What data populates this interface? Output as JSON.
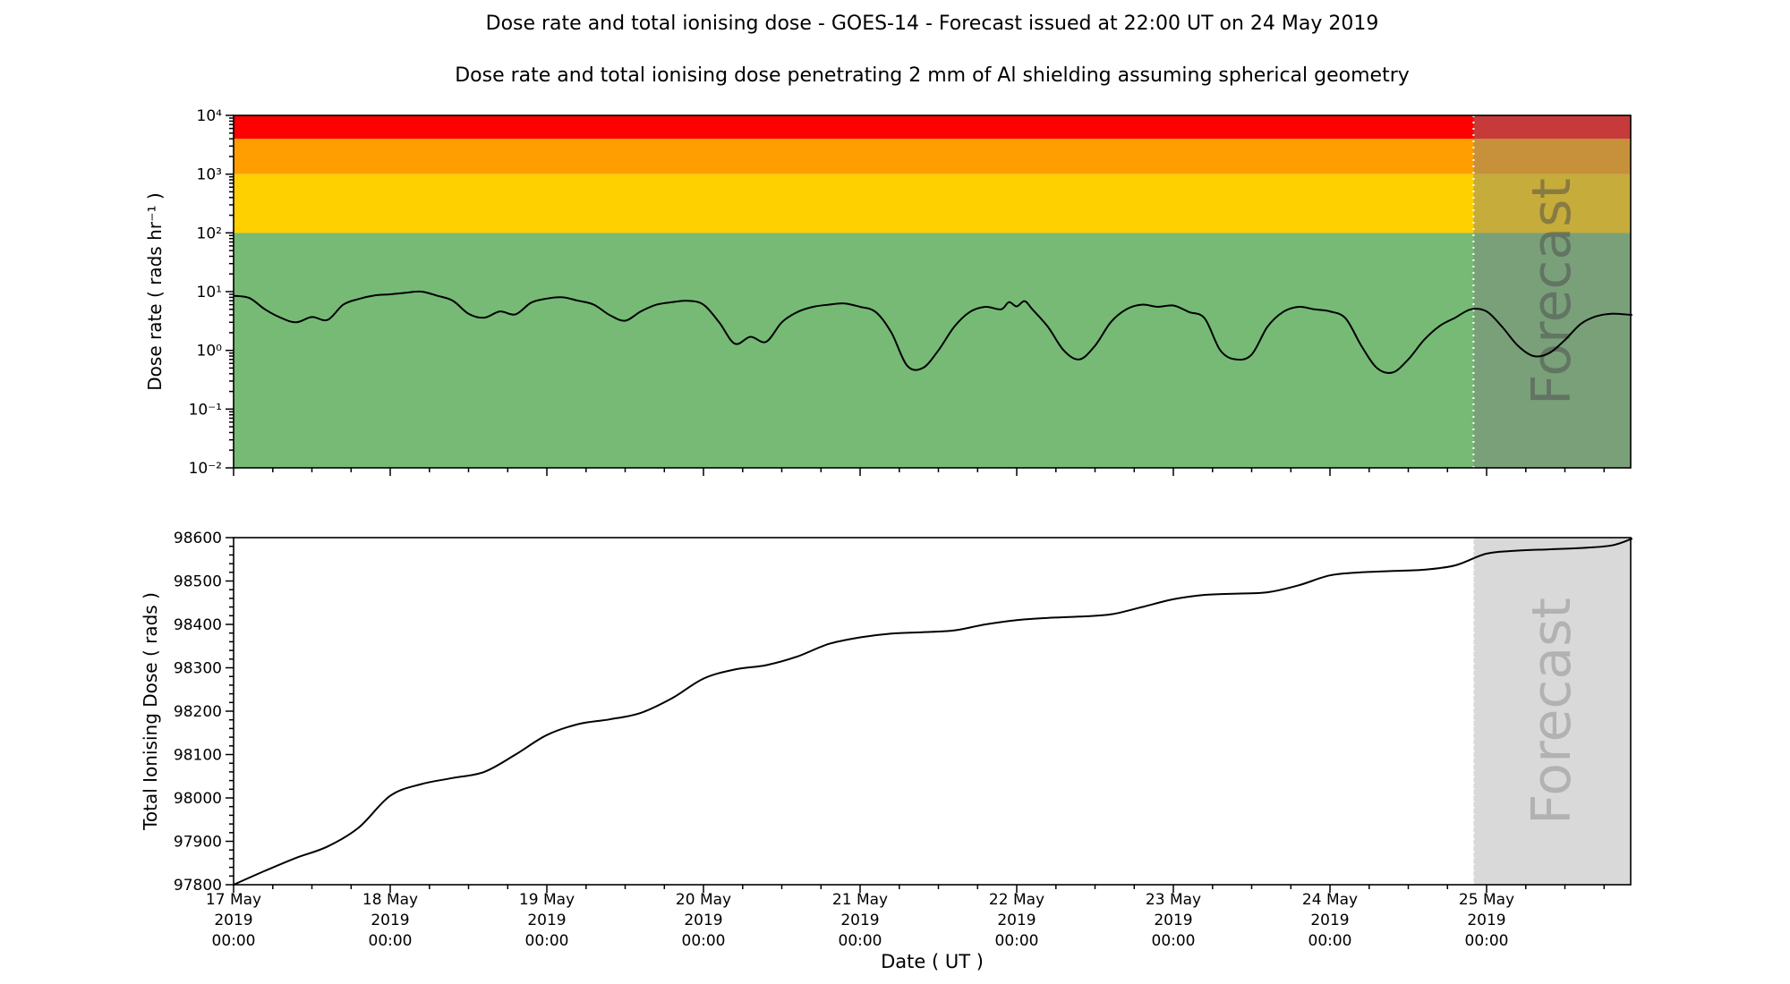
{
  "chart_data": {
    "type": "line",
    "title": "Dose rate and total ionising dose - GOES-14 - Forecast issued at 22:00 UT on 24 May 2019",
    "subtitle": "Dose rate and total ionising dose penetrating 2 mm of Al shielding assuming spherical geometry",
    "x_axis": {
      "label": "Date ( UT )",
      "domain_days": [
        0,
        8.92
      ],
      "start_date": "17 May 2019 00:00",
      "tick_days": [
        0,
        1,
        2,
        3,
        4,
        5,
        6,
        7,
        8
      ],
      "tick_labels": [
        [
          "17 May",
          "2019",
          "00:00"
        ],
        [
          "18 May",
          "2019",
          "00:00"
        ],
        [
          "19 May",
          "2019",
          "00:00"
        ],
        [
          "20 May",
          "2019",
          "00:00"
        ],
        [
          "21 May",
          "2019",
          "00:00"
        ],
        [
          "22 May",
          "2019",
          "00:00"
        ],
        [
          "23 May",
          "2019",
          "00:00"
        ],
        [
          "24 May",
          "2019",
          "00:00"
        ],
        [
          "25 May",
          "2019",
          "00:00"
        ]
      ],
      "minor_tick_interval_days": 0.25,
      "forecast_start_day": 7.9167
    },
    "forecast": {
      "label": "Forecast",
      "overlay_color": "#808080",
      "overlay_opacity": 0.45,
      "bottom_fill": "#d9d9d9",
      "watermark_color_top": "#4a4a4a",
      "watermark_opacity_top": 0.5,
      "watermark_color_bottom": "#b2b2b2",
      "divider_color": "#ffffff"
    },
    "panels": [
      {
        "name": "dose-rate",
        "type": "line",
        "ylabel": "Dose rate ( rads hr⁻¹ )",
        "yscale": "log",
        "ylim": [
          0.01,
          10000
        ],
        "ytick_values": [
          0.01,
          0.1,
          1,
          10,
          100,
          1000,
          10000
        ],
        "ytick_labels": [
          "10⁻²",
          "10⁻¹",
          "10⁰",
          "10¹",
          "10²",
          "10³",
          "10⁴"
        ],
        "bands": [
          {
            "name": "green",
            "from": 0.01,
            "to": 100,
            "color": "#76ba76"
          },
          {
            "name": "yellow",
            "from": 100,
            "to": 1000,
            "color": "#ffd000"
          },
          {
            "name": "orange",
            "from": 1000,
            "to": 4000,
            "color": "#ff9e00"
          },
          {
            "name": "red",
            "from": 4000,
            "to": 10000,
            "color": "#ff0000"
          }
        ],
        "line_color": "#000000",
        "x_days": [
          0.0,
          0.1,
          0.2,
          0.3,
          0.4,
          0.5,
          0.6,
          0.7,
          0.8,
          0.9,
          1.0,
          1.1,
          1.2,
          1.3,
          1.4,
          1.5,
          1.6,
          1.7,
          1.8,
          1.9,
          2.0,
          2.1,
          2.2,
          2.3,
          2.4,
          2.5,
          2.6,
          2.7,
          2.8,
          2.9,
          3.0,
          3.1,
          3.2,
          3.3,
          3.4,
          3.5,
          3.6,
          3.7,
          3.8,
          3.9,
          4.0,
          4.1,
          4.2,
          4.3,
          4.4,
          4.5,
          4.6,
          4.7,
          4.8,
          4.9,
          4.95,
          5.0,
          5.05,
          5.1,
          5.2,
          5.3,
          5.4,
          5.5,
          5.6,
          5.7,
          5.8,
          5.9,
          6.0,
          6.1,
          6.2,
          6.3,
          6.4,
          6.5,
          6.6,
          6.7,
          6.8,
          6.9,
          7.0,
          7.1,
          7.2,
          7.3,
          7.4,
          7.5,
          7.6,
          7.7,
          7.8,
          7.9,
          8.0,
          8.1,
          8.2,
          8.3,
          8.4,
          8.5,
          8.6,
          8.7,
          8.8,
          8.93
        ],
        "values": [
          8.5,
          7.8,
          5.0,
          3.6,
          3.0,
          3.7,
          3.3,
          6.0,
          7.5,
          8.6,
          9.0,
          9.6,
          10.0,
          8.5,
          7.0,
          4.2,
          3.6,
          4.6,
          4.1,
          6.5,
          7.6,
          8.0,
          7.0,
          6.0,
          4.0,
          3.2,
          4.6,
          6.0,
          6.6,
          7.0,
          6.0,
          3.0,
          1.3,
          1.7,
          1.4,
          3.0,
          4.5,
          5.5,
          6.0,
          6.3,
          5.5,
          4.5,
          2.0,
          0.55,
          0.5,
          1.0,
          2.5,
          4.5,
          5.5,
          5.0,
          6.6,
          5.6,
          6.9,
          5.0,
          2.5,
          1.0,
          0.7,
          1.2,
          3.0,
          5.0,
          6.0,
          5.5,
          5.8,
          4.5,
          3.5,
          1.0,
          0.7,
          0.85,
          2.5,
          4.5,
          5.5,
          5.0,
          4.6,
          3.5,
          1.2,
          0.5,
          0.42,
          0.7,
          1.5,
          2.6,
          3.6,
          5.0,
          4.6,
          2.5,
          1.2,
          0.8,
          0.9,
          1.5,
          2.8,
          3.8,
          4.2,
          4.0
        ]
      },
      {
        "name": "total-ionising-dose",
        "type": "line",
        "ylabel": "Total Ionising Dose ( rads )",
        "yscale": "linear",
        "ylim": [
          97800,
          98600
        ],
        "ytick_values": [
          97800,
          97900,
          98000,
          98100,
          98200,
          98300,
          98400,
          98500,
          98600
        ],
        "minor_tick_step": 20,
        "line_color": "#000000",
        "x_days": [
          0.0,
          0.2,
          0.4,
          0.6,
          0.8,
          1.0,
          1.2,
          1.4,
          1.6,
          1.8,
          2.0,
          2.2,
          2.4,
          2.6,
          2.8,
          3.0,
          3.2,
          3.4,
          3.6,
          3.8,
          4.0,
          4.2,
          4.4,
          4.6,
          4.8,
          5.0,
          5.2,
          5.4,
          5.6,
          5.8,
          6.0,
          6.2,
          6.4,
          6.6,
          6.8,
          7.0,
          7.2,
          7.4,
          7.6,
          7.8,
          8.0,
          8.2,
          8.4,
          8.6,
          8.8,
          8.93
        ],
        "values": [
          97800,
          97832,
          97862,
          97888,
          97932,
          98005,
          98032,
          98046,
          98060,
          98100,
          98145,
          98170,
          98181,
          98196,
          98230,
          98275,
          98296,
          98306,
          98326,
          98355,
          98370,
          98379,
          98382,
          98386,
          98400,
          98410,
          98415,
          98418,
          98423,
          98440,
          98458,
          98468,
          98471,
          98474,
          98490,
          98513,
          98520,
          98523,
          98526,
          98536,
          98563,
          98570,
          98573,
          98576,
          98582,
          98598
        ]
      }
    ]
  }
}
